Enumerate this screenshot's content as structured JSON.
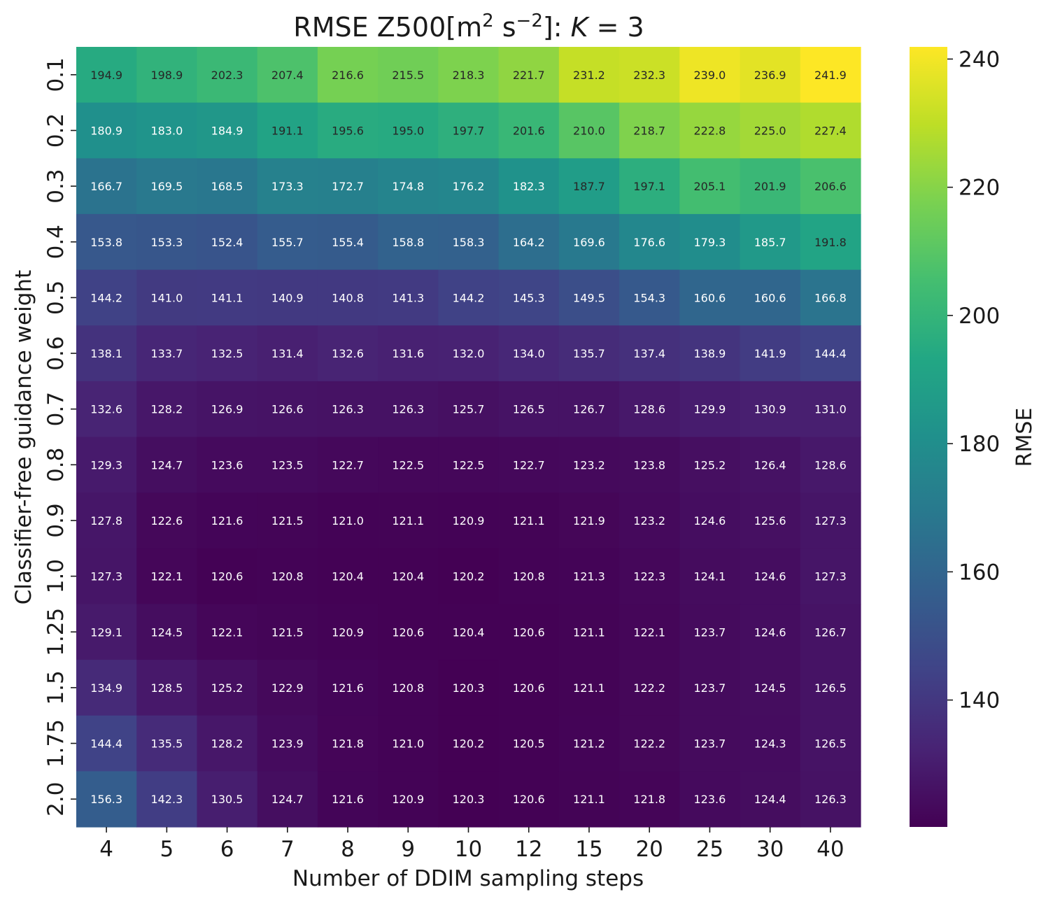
{
  "chart_data": {
    "type": "heatmap",
    "title": {
      "prefix": "RMSE Z500[m",
      "sup1": "2",
      "mid": " s",
      "sup2": "−2",
      "suffix": "]: ",
      "k_symbol": "K",
      "k_value": " = 3"
    },
    "xlabel": "Number of DDIM sampling steps",
    "ylabel": "Classifier-free guidance weight",
    "x_categories": [
      "4",
      "5",
      "6",
      "7",
      "8",
      "9",
      "10",
      "12",
      "15",
      "20",
      "25",
      "30",
      "40"
    ],
    "y_categories": [
      "0.1",
      "0.2",
      "0.3",
      "0.4",
      "0.5",
      "0.6",
      "0.7",
      "0.8",
      "0.9",
      "1.0",
      "1.25",
      "1.5",
      "1.75",
      "2.0"
    ],
    "values": [
      [
        194.9,
        198.9,
        202.3,
        207.4,
        216.6,
        215.5,
        218.3,
        221.7,
        231.2,
        232.3,
        239.0,
        236.9,
        241.9
      ],
      [
        180.9,
        183.0,
        184.9,
        191.1,
        195.6,
        195.0,
        197.7,
        201.6,
        210.0,
        218.7,
        222.8,
        225.0,
        227.4
      ],
      [
        166.7,
        169.5,
        168.5,
        173.3,
        172.7,
        174.8,
        176.2,
        182.3,
        187.7,
        197.1,
        205.1,
        201.9,
        206.6
      ],
      [
        153.8,
        153.3,
        152.4,
        155.7,
        155.4,
        158.8,
        158.3,
        164.2,
        169.6,
        176.6,
        179.3,
        185.7,
        191.8
      ],
      [
        144.2,
        141.0,
        141.1,
        140.9,
        140.8,
        141.3,
        144.2,
        145.3,
        149.5,
        154.3,
        160.6,
        160.6,
        166.8
      ],
      [
        138.1,
        133.7,
        132.5,
        131.4,
        132.6,
        131.6,
        132.0,
        134.0,
        135.7,
        137.4,
        138.9,
        141.9,
        144.4
      ],
      [
        132.6,
        128.2,
        126.9,
        126.6,
        126.3,
        126.3,
        125.7,
        126.5,
        126.7,
        128.6,
        129.9,
        130.9,
        131.0
      ],
      [
        129.3,
        124.7,
        123.6,
        123.5,
        122.7,
        122.5,
        122.5,
        122.7,
        123.2,
        123.8,
        125.2,
        126.4,
        128.6
      ],
      [
        127.8,
        122.6,
        121.6,
        121.5,
        121.0,
        121.1,
        120.9,
        121.1,
        121.9,
        123.2,
        124.6,
        125.6,
        127.3
      ],
      [
        127.3,
        122.1,
        120.6,
        120.8,
        120.4,
        120.4,
        120.2,
        120.8,
        121.3,
        122.3,
        124.1,
        124.6,
        127.3
      ],
      [
        129.1,
        124.5,
        122.1,
        121.5,
        120.9,
        120.6,
        120.4,
        120.6,
        121.1,
        122.1,
        123.7,
        124.6,
        126.7
      ],
      [
        134.9,
        128.5,
        125.2,
        122.9,
        121.6,
        120.8,
        120.3,
        120.6,
        121.1,
        122.2,
        123.7,
        124.5,
        126.5
      ],
      [
        144.4,
        135.5,
        128.2,
        123.9,
        121.8,
        121.0,
        120.2,
        120.5,
        121.2,
        122.2,
        123.7,
        124.3,
        126.5
      ],
      [
        156.3,
        142.3,
        130.5,
        124.7,
        121.6,
        120.9,
        120.3,
        120.6,
        121.1,
        121.8,
        123.6,
        124.4,
        126.3
      ]
    ],
    "colorbar": {
      "label": "RMSE",
      "colormap": "viridis",
      "vmin": 120.2,
      "vmax": 241.9,
      "ticks": [
        140,
        160,
        180,
        200,
        220,
        240
      ]
    },
    "grid": false
  }
}
